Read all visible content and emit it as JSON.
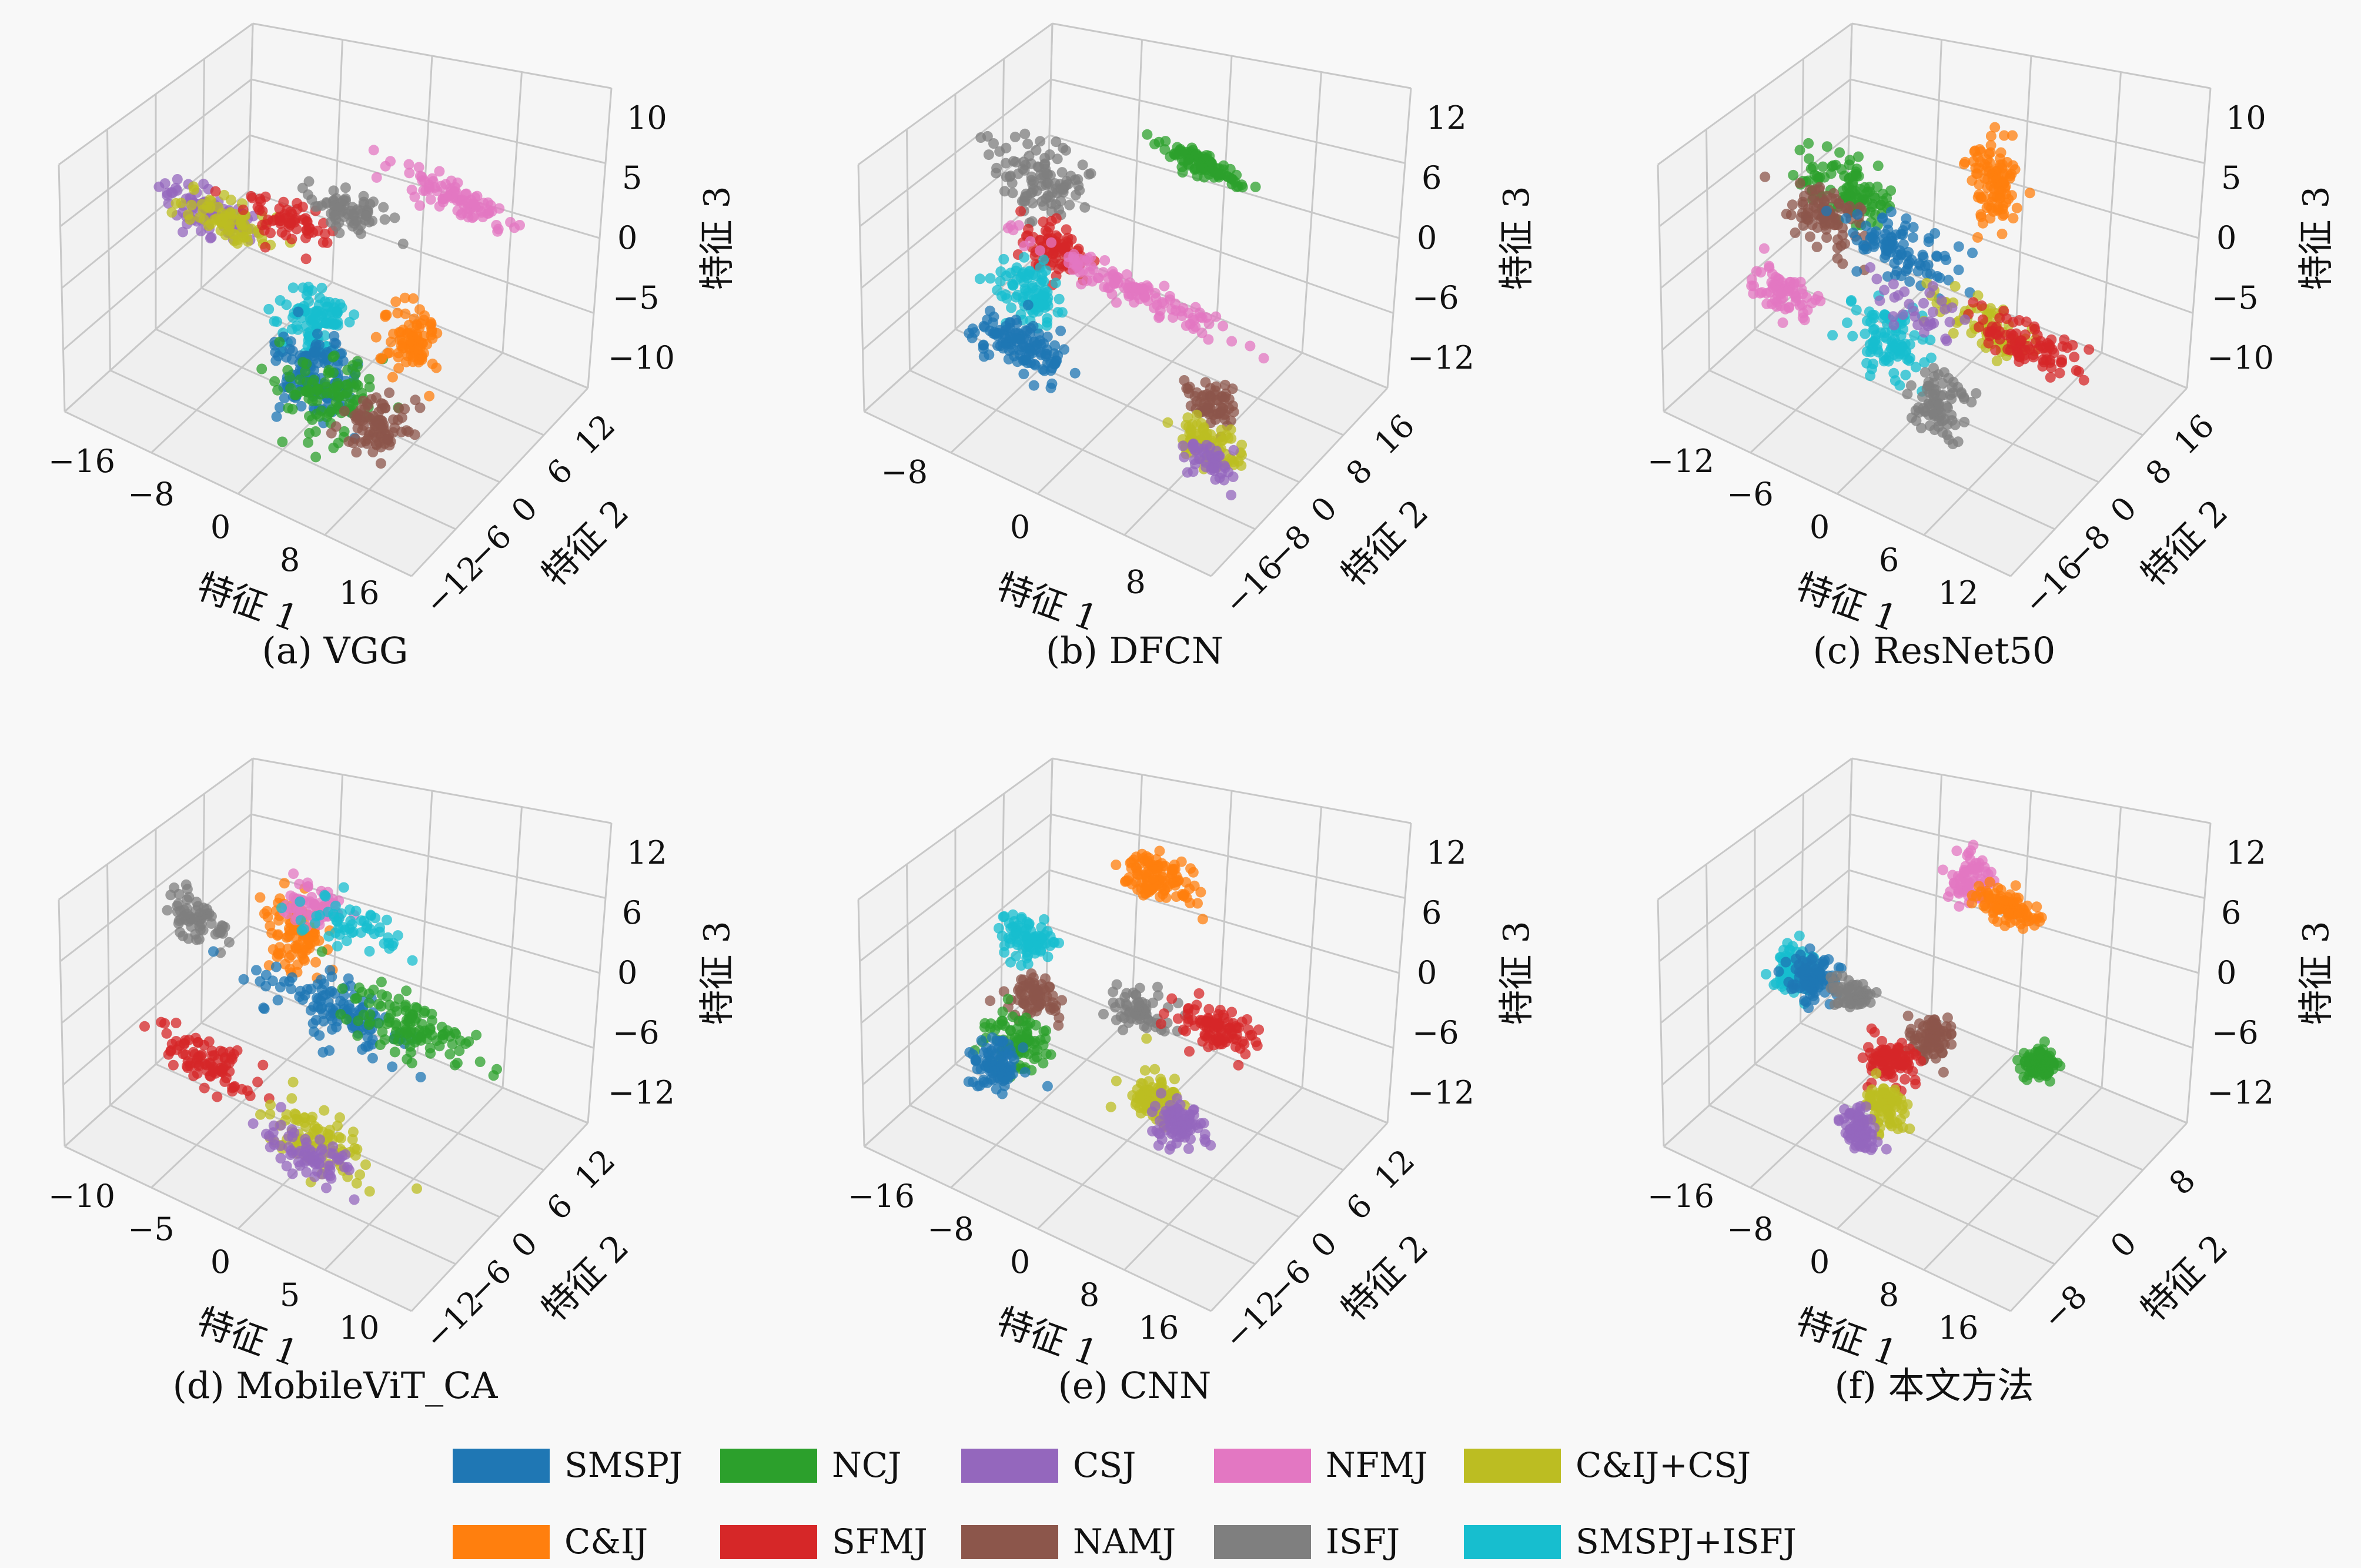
{
  "figure": {
    "caption_note": "",
    "legend": [
      {
        "label": "SMSPJ",
        "color": "#1f77b4"
      },
      {
        "label": "NCJ",
        "color": "#2ca02c"
      },
      {
        "label": "CSJ",
        "color": "#9467bd"
      },
      {
        "label": "NFMJ",
        "color": "#e377c2"
      },
      {
        "label": "C&IJ+CSJ",
        "color": "#bcbd22"
      },
      {
        "label": "C&IJ",
        "color": "#ff7f0e"
      },
      {
        "label": "SFMJ",
        "color": "#d62728"
      },
      {
        "label": "NAMJ",
        "color": "#8c564b"
      },
      {
        "label": "ISFJ",
        "color": "#7f7f7f"
      },
      {
        "label": "SMSPJ+ISFJ",
        "color": "#17becf"
      }
    ]
  },
  "chart_data": [
    {
      "type": "scatter",
      "projection": "3d",
      "title": "(a) VGG",
      "xlabel": "特征 1",
      "ylabel": "特征 2",
      "zlabel": "特征 3",
      "xticks": [
        "−16",
        "−8",
        "0",
        "8",
        "16"
      ],
      "yticks": [
        "−12",
        "−6",
        "0",
        "6",
        "12"
      ],
      "zticks": [
        "−10",
        "−5",
        "0",
        "5",
        "10"
      ],
      "xlim": [
        -18,
        18
      ],
      "ylim": [
        -14,
        14
      ],
      "zlim": [
        -12,
        12
      ],
      "clusters": [
        {
          "series": "CSJ",
          "center": [
            -14,
            2,
            0
          ],
          "spread": [
            2.5,
            1,
            0.6
          ],
          "n": 22
        },
        {
          "series": "C&IJ+CSJ",
          "center": [
            -11,
            1,
            1
          ],
          "spread": [
            2.5,
            1,
            0.6
          ],
          "n": 18
        },
        {
          "series": "SFMJ",
          "center": [
            -6,
            3,
            2
          ],
          "spread": [
            2,
            1,
            0.6
          ],
          "n": 16
        },
        {
          "series": "ISFJ",
          "center": [
            -2,
            5,
            4
          ],
          "spread": [
            2,
            1,
            0.6
          ],
          "n": 18
        },
        {
          "series": "NFMJ",
          "center": [
            6,
            10,
            6
          ],
          "spread": [
            3,
            0.6,
            0.5
          ],
          "n": 22
        },
        {
          "series": "SMSPJ+ISFJ",
          "center": [
            0,
            -2,
            -2
          ],
          "spread": [
            1.5,
            1.5,
            1.5
          ],
          "n": 26
        },
        {
          "series": "SMSPJ",
          "center": [
            1,
            -4,
            -6
          ],
          "spread": [
            1.8,
            1.8,
            1.8
          ],
          "n": 34
        },
        {
          "series": "NCJ",
          "center": [
            3,
            -4,
            -7
          ],
          "spread": [
            2,
            2,
            1.5
          ],
          "n": 26
        },
        {
          "series": "C&IJ",
          "center": [
            7,
            2,
            -3
          ],
          "spread": [
            1.2,
            1,
            1.2
          ],
          "n": 22
        },
        {
          "series": "NAMJ",
          "center": [
            7,
            -3,
            -9
          ],
          "spread": [
            1.4,
            1.4,
            1.2
          ],
          "n": 22
        }
      ]
    },
    {
      "type": "scatter",
      "projection": "3d",
      "title": "(b) DFCN",
      "xlabel": "特征 1",
      "ylabel": "特征 2",
      "zlabel": "特征 3",
      "xticks": [
        "−8",
        "0",
        "8"
      ],
      "yticks": [
        "−16",
        "−8",
        "0",
        "8",
        "16"
      ],
      "zticks": [
        "−12",
        "−6",
        "0",
        "6",
        "12"
      ],
      "xlim": [
        -14,
        14
      ],
      "ylim": [
        -18,
        18
      ],
      "zlim": [
        -14,
        14
      ],
      "clusters": [
        {
          "series": "ISFJ",
          "center": [
            -8,
            2,
            6
          ],
          "spread": [
            1.5,
            1.5,
            2
          ],
          "n": 26
        },
        {
          "series": "SFMJ",
          "center": [
            -6,
            0,
            0
          ],
          "spread": [
            1.2,
            1,
            1.4
          ],
          "n": 20
        },
        {
          "series": "SMSPJ+ISFJ",
          "center": [
            -7,
            -2,
            -4
          ],
          "spread": [
            1.4,
            1.4,
            1.4
          ],
          "n": 22
        },
        {
          "series": "SMSPJ",
          "center": [
            -7,
            -4,
            -9
          ],
          "spread": [
            1.8,
            1.4,
            1.2
          ],
          "n": 30
        },
        {
          "series": "NFMJ",
          "center": [
            0,
            0,
            0
          ],
          "spread": [
            4,
            0.6,
            0.6
          ],
          "n": 30
        },
        {
          "series": "NCJ",
          "center": [
            2,
            10,
            10
          ],
          "spread": [
            1.6,
            0.5,
            0.6
          ],
          "n": 24
        },
        {
          "series": "NAMJ",
          "center": [
            9,
            -6,
            -4
          ],
          "spread": [
            1,
            1,
            1
          ],
          "n": 16
        },
        {
          "series": "C&IJ+CSJ",
          "center": [
            10,
            -8,
            -7
          ],
          "spread": [
            1.2,
            1,
            1
          ],
          "n": 20
        },
        {
          "series": "CSJ",
          "center": [
            10,
            -9,
            -8
          ],
          "spread": [
            1,
            1,
            0.8
          ],
          "n": 12
        }
      ]
    },
    {
      "type": "scatter",
      "projection": "3d",
      "title": "(c) ResNet50",
      "xlabel": "特征 1",
      "ylabel": "特征 2",
      "zlabel": "特征 3",
      "xticks": [
        "−12",
        "−6",
        "0",
        "6",
        "12"
      ],
      "yticks": [
        "−16",
        "−8",
        "0",
        "8",
        "16"
      ],
      "zticks": [
        "−10",
        "−5",
        "0",
        "5",
        "10"
      ],
      "xlim": [
        -14,
        14
      ],
      "ylim": [
        -18,
        18
      ],
      "zlim": [
        -12,
        12
      ],
      "clusters": [
        {
          "series": "NCJ",
          "center": [
            -8,
            4,
            3
          ],
          "spread": [
            2,
            1.4,
            1.2
          ],
          "n": 26
        },
        {
          "series": "NAMJ",
          "center": [
            -9,
            2,
            1
          ],
          "spread": [
            1.6,
            1.2,
            1.2
          ],
          "n": 22
        },
        {
          "series": "NFMJ",
          "center": [
            -11,
            -2,
            -6
          ],
          "spread": [
            1.2,
            1.2,
            1.2
          ],
          "n": 18
        },
        {
          "series": "SMSPJ",
          "center": [
            -3,
            2,
            1
          ],
          "spread": [
            2,
            1.2,
            1.2
          ],
          "n": 24
        },
        {
          "series": "SMSPJ+ISFJ",
          "center": [
            -2,
            -3,
            -5
          ],
          "spread": [
            1.4,
            1.4,
            1.6
          ],
          "n": 24
        },
        {
          "series": "C&IJ",
          "center": [
            2,
            8,
            8
          ],
          "spread": [
            0.8,
            0.8,
            2
          ],
          "n": 26
        },
        {
          "series": "C&IJ+CSJ",
          "center": [
            4,
            1,
            -2
          ],
          "spread": [
            2,
            1.2,
            1
          ],
          "n": 18
        },
        {
          "series": "SFMJ",
          "center": [
            8,
            0,
            -1
          ],
          "spread": [
            2,
            1,
            0.8
          ],
          "n": 22
        },
        {
          "series": "ISFJ",
          "center": [
            3,
            -5,
            -7
          ],
          "spread": [
            1,
            1,
            2
          ],
          "n": 20
        },
        {
          "series": "CSJ",
          "center": [
            0,
            -1,
            -2
          ],
          "spread": [
            2,
            1,
            1
          ],
          "n": 8
        }
      ]
    },
    {
      "type": "scatter",
      "projection": "3d",
      "title": "(d) MobileViT_CA",
      "xlabel": "特征 1",
      "ylabel": "特征 2",
      "zlabel": "特征 3",
      "xticks": [
        "−10",
        "−5",
        "0",
        "5",
        "10"
      ],
      "yticks": [
        "−12",
        "−6",
        "0",
        "6",
        "12"
      ],
      "zticks": [
        "−12",
        "−6",
        "0",
        "6",
        "12"
      ],
      "xlim": [
        -12,
        12
      ],
      "ylim": [
        -14,
        14
      ],
      "zlim": [
        -14,
        14
      ],
      "clusters": [
        {
          "series": "ISFJ",
          "center": [
            -10,
            2,
            3
          ],
          "spread": [
            1,
            1,
            1
          ],
          "n": 16
        },
        {
          "series": "C&IJ",
          "center": [
            -4,
            4,
            4
          ],
          "spread": [
            1,
            1,
            2
          ],
          "n": 26
        },
        {
          "series": "NFMJ",
          "center": [
            -4,
            6,
            6
          ],
          "spread": [
            1,
            1,
            1
          ],
          "n": 14
        },
        {
          "series": "SMSPJ+ISFJ",
          "center": [
            -2,
            6,
            6
          ],
          "spread": [
            2,
            1,
            1
          ],
          "n": 14
        },
        {
          "series": "SMSPJ",
          "center": [
            0,
            2,
            0
          ],
          "spread": [
            2.4,
            1.4,
            1.4
          ],
          "n": 30
        },
        {
          "series": "NCJ",
          "center": [
            4,
            4,
            0
          ],
          "spread": [
            2.2,
            1.2,
            1.2
          ],
          "n": 28
        },
        {
          "series": "SFMJ",
          "center": [
            -7,
            -3,
            -8
          ],
          "spread": [
            1.6,
            1,
            0.8
          ],
          "n": 22
        },
        {
          "series": "C&IJ+CSJ",
          "center": [
            1,
            -5,
            -9
          ],
          "spread": [
            2,
            1.2,
            1.2
          ],
          "n": 22
        },
        {
          "series": "CSJ",
          "center": [
            1,
            -6,
            -10
          ],
          "spread": [
            1.6,
            1,
            1
          ],
          "n": 18
        }
      ]
    },
    {
      "type": "scatter",
      "projection": "3d",
      "title": "(e) CNN",
      "xlabel": "特征 1",
      "ylabel": "特征 2",
      "zlabel": "特征 3",
      "xticks": [
        "−16",
        "−8",
        "0",
        "8",
        "16"
      ],
      "yticks": [
        "−12",
        "−6",
        "0",
        "6",
        "12"
      ],
      "zticks": [
        "−12",
        "−6",
        "0",
        "6",
        "12"
      ],
      "xlim": [
        -18,
        18
      ],
      "ylim": [
        -14,
        14
      ],
      "zlim": [
        -14,
        14
      ],
      "clusters": [
        {
          "series": "C&IJ",
          "center": [
            -2,
            8,
            10
          ],
          "spread": [
            2,
            1,
            1
          ],
          "n": 28
        },
        {
          "series": "SMSPJ+ISFJ",
          "center": [
            -12,
            2,
            2
          ],
          "spread": [
            1.2,
            1,
            1
          ],
          "n": 20
        },
        {
          "series": "NAMJ",
          "center": [
            -10,
            0,
            -2
          ],
          "spread": [
            1.2,
            1,
            1
          ],
          "n": 18
        },
        {
          "series": "NCJ",
          "center": [
            -10,
            -2,
            -6
          ],
          "spread": [
            1.4,
            1.2,
            1.2
          ],
          "n": 22
        },
        {
          "series": "SMSPJ",
          "center": [
            -12,
            -3,
            -9
          ],
          "spread": [
            1.4,
            1.2,
            1
          ],
          "n": 22
        },
        {
          "series": "ISFJ",
          "center": [
            0,
            2,
            0
          ],
          "spread": [
            1.4,
            0.8,
            0.8
          ],
          "n": 16
        },
        {
          "series": "SFMJ",
          "center": [
            6,
            4,
            0
          ],
          "spread": [
            2,
            1,
            0.8
          ],
          "n": 24
        },
        {
          "series": "C&IJ+CSJ",
          "center": [
            4,
            -2,
            -5
          ],
          "spread": [
            1.2,
            1,
            1
          ],
          "n": 22
        },
        {
          "series": "CSJ",
          "center": [
            7,
            -3,
            -6
          ],
          "spread": [
            1.2,
            1,
            1
          ],
          "n": 22
        }
      ]
    },
    {
      "type": "scatter",
      "projection": "3d",
      "title": "(f) 本文方法",
      "xlabel": "特征 1",
      "ylabel": "特征 2",
      "zlabel": "特征 3",
      "xticks": [
        "−16",
        "−8",
        "0",
        "8",
        "16"
      ],
      "yticks": [
        "−8",
        "0",
        "8"
      ],
      "zticks": [
        "−12",
        "−6",
        "0",
        "6",
        "12"
      ],
      "xlim": [
        -18,
        18
      ],
      "ylim": [
        -12,
        12
      ],
      "zlim": [
        -14,
        14
      ],
      "clusters": [
        {
          "series": "NFMJ",
          "center": [
            -2,
            8,
            9
          ],
          "spread": [
            1,
            0.8,
            1
          ],
          "n": 18
        },
        {
          "series": "C&IJ",
          "center": [
            2,
            8,
            8
          ],
          "spread": [
            1.6,
            0.6,
            0.6
          ],
          "n": 22
        },
        {
          "series": "SMSPJ+ISFJ",
          "center": [
            -14,
            0,
            -1
          ],
          "spread": [
            1,
            1,
            1
          ],
          "n": 20
        },
        {
          "series": "SMSPJ",
          "center": [
            -12,
            0,
            -1
          ],
          "spread": [
            1,
            1,
            1.2
          ],
          "n": 22
        },
        {
          "series": "ISFJ",
          "center": [
            -9,
            1,
            -2
          ],
          "spread": [
            1.2,
            0.6,
            0.6
          ],
          "n": 14
        },
        {
          "series": "NAMJ",
          "center": [
            0,
            0,
            -2
          ],
          "spread": [
            0.8,
            0.8,
            1
          ],
          "n": 20
        },
        {
          "series": "SFMJ",
          "center": [
            -3,
            -1,
            -5
          ],
          "spread": [
            1.2,
            0.8,
            0.8
          ],
          "n": 22
        },
        {
          "series": "C&IJ+CSJ",
          "center": [
            -2,
            -3,
            -8
          ],
          "spread": [
            1.2,
            0.8,
            1
          ],
          "n": 20
        },
        {
          "series": "CSJ",
          "center": [
            -4,
            -4,
            -11
          ],
          "spread": [
            0.8,
            0.6,
            1.2
          ],
          "n": 20
        },
        {
          "series": "NCJ",
          "center": [
            10,
            2,
            -1
          ],
          "spread": [
            0.6,
            0.6,
            0.6
          ],
          "n": 26
        }
      ]
    }
  ]
}
